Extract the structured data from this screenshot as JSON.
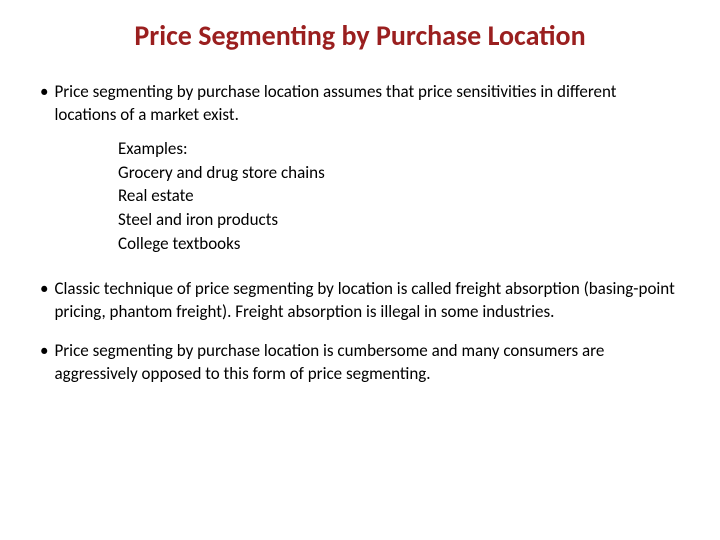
{
  "title": "Price Segmenting by Purchase Location",
  "bullet1": {
    "marker": "•",
    "text": "Price segmenting by purchase location assumes that price sensitivities in different locations of a market exist."
  },
  "examples": {
    "label": "Examples:",
    "line1": "Grocery and drug store chains",
    "line2": "Real estate",
    "line3": "Steel and iron products",
    "line4": "College textbooks"
  },
  "bullet2": {
    "marker": "•",
    "text": "Classic technique of price segmenting by location is called freight absorption (basing-point pricing, phantom freight). Freight absorption is illegal in some industries."
  },
  "bullet3": {
    "marker": "•",
    "text": "Price segmenting by purchase location is cumbersome and many consumers are aggressively opposed to this form of price segmenting."
  },
  "colors": {
    "title_color": "#9a1f1f",
    "body_color": "#000000",
    "background": "#ffffff"
  },
  "typography": {
    "title_fontsize": 28,
    "body_fontsize": 17,
    "title_weight": 600,
    "body_weight": 400
  }
}
